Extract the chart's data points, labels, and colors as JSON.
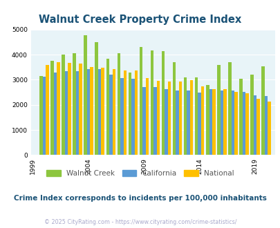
{
  "title": "Walnut Creek Property Crime Index",
  "title_color": "#1a5276",
  "subtitle": "Crime Index corresponds to incidents per 100,000 inhabitants",
  "subtitle_color": "#1a5276",
  "footer": "© 2025 CityRating.com - https://www.cityrating.com/crime-statistics/",
  "footer_color": "#aaaacc",
  "years": [
    2000,
    2001,
    2002,
    2003,
    2004,
    2005,
    2006,
    2007,
    2008,
    2009,
    2010,
    2011,
    2012,
    2013,
    2014,
    2015,
    2016,
    2017,
    2018,
    2019,
    2020
  ],
  "walnut_creek": [
    3150,
    3750,
    4000,
    4050,
    4780,
    4500,
    3850,
    4050,
    3300,
    4300,
    4180,
    4150,
    3700,
    3100,
    3100,
    2800,
    3600,
    3700,
    3050,
    3200,
    3530
  ],
  "california": [
    3120,
    3280,
    3350,
    3350,
    3430,
    3420,
    3200,
    3060,
    3050,
    2720,
    2720,
    2620,
    2570,
    2560,
    2490,
    2620,
    2580,
    2560,
    2520,
    2390,
    2360
  ],
  "national": [
    3600,
    3700,
    3680,
    3650,
    3520,
    3480,
    3430,
    3370,
    3360,
    3060,
    2970,
    2920,
    2920,
    2980,
    2730,
    2640,
    2640,
    2520,
    2470,
    2230,
    2130
  ],
  "walnut_color": "#8dc63f",
  "california_color": "#5b9bd5",
  "national_color": "#ffc000",
  "bg_color": "#e8f4f8",
  "ylim": [
    0,
    5000
  ],
  "yticks": [
    0,
    1000,
    2000,
    3000,
    4000,
    5000
  ],
  "xlabel_tick_labels": [
    "1999",
    "2004",
    "2009",
    "2014",
    "2019"
  ],
  "xlabel_tick_years": [
    1999,
    2004,
    2009,
    2014,
    2019
  ],
  "bar_width": 0.28
}
